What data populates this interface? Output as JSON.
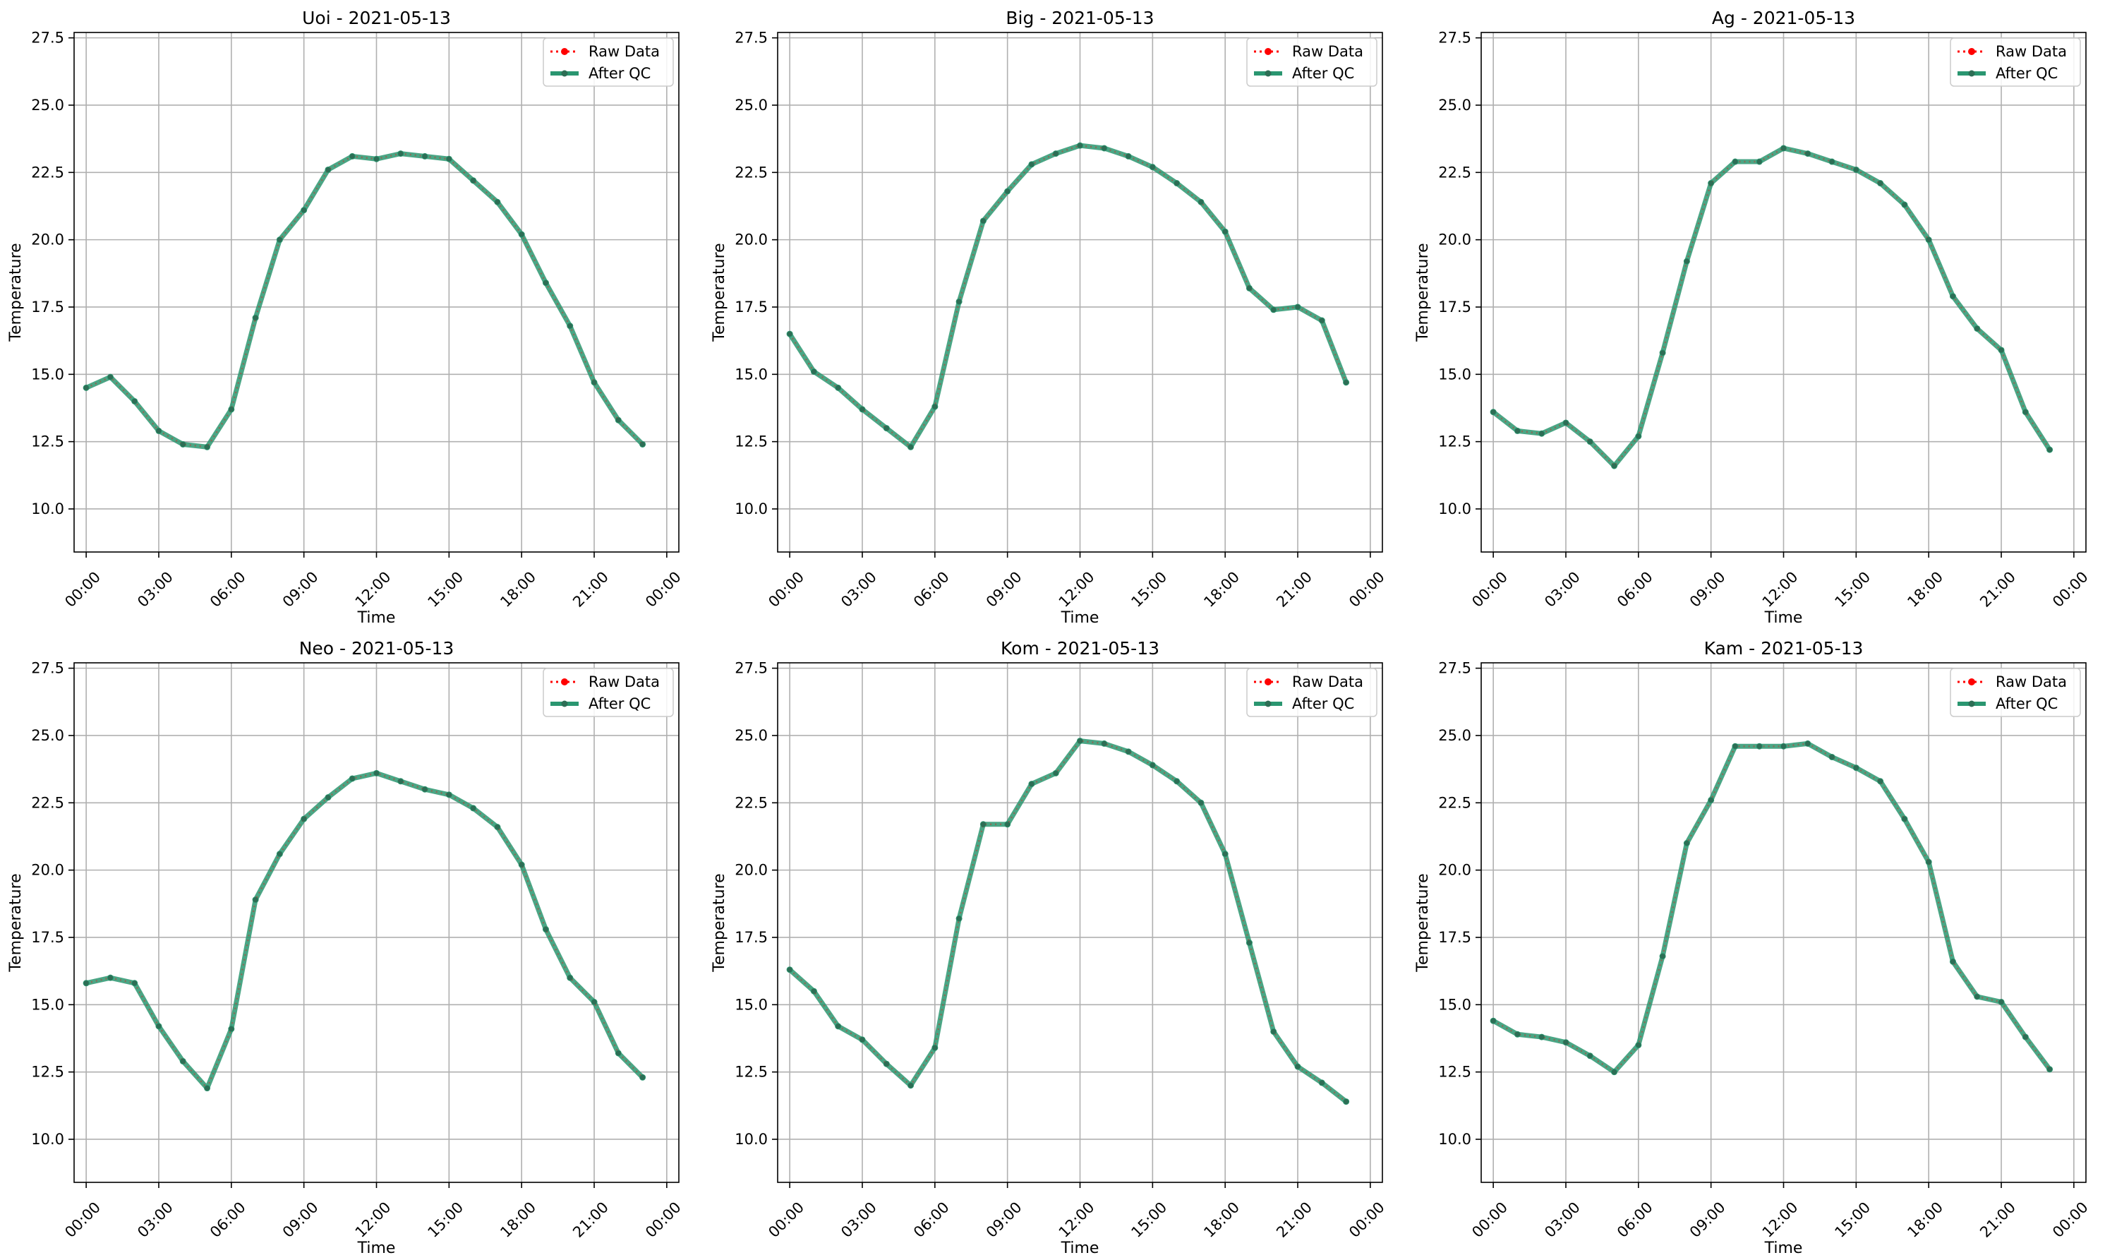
{
  "figure": {
    "xlabel": "Time",
    "ylabel": "Temperature",
    "legend": {
      "raw_label": "Raw Data",
      "qc_label": "After QC",
      "placement": "top-right"
    },
    "colors": {
      "raw": "#ff0000",
      "qc": "#2a9670",
      "grid": "#b0b0b0",
      "axes": "#000000"
    }
  },
  "chart_data": [
    {
      "type": "line",
      "title": "Uoi - 2021-05-13",
      "xlabel": "Time",
      "ylabel": "Temperature",
      "x_hours": [
        0,
        1,
        2,
        3,
        4,
        5,
        6,
        7,
        8,
        9,
        10,
        11,
        12,
        13,
        14,
        15,
        16,
        17,
        18,
        19,
        20,
        21,
        22,
        23
      ],
      "xticks": [
        "00:00",
        "03:00",
        "06:00",
        "09:00",
        "12:00",
        "15:00",
        "18:00",
        "21:00",
        "00:00"
      ],
      "yticks": [
        "10.0",
        "12.5",
        "15.0",
        "17.5",
        "20.0",
        "22.5",
        "25.0",
        "27.5"
      ],
      "ylim": [
        8.4,
        27.7
      ],
      "xlim": [
        -0.5,
        24.5
      ],
      "grid": true,
      "series": [
        {
          "name": "Raw Data",
          "values": [
            14.5,
            14.9,
            14.0,
            12.9,
            12.4,
            12.3,
            13.7,
            17.1,
            20.0,
            21.1,
            22.6,
            23.1,
            23.0,
            23.2,
            23.1,
            23.0,
            22.2,
            21.4,
            20.2,
            18.4,
            16.8,
            14.7,
            13.3,
            12.4
          ]
        },
        {
          "name": "After QC",
          "values": [
            14.5,
            14.9,
            14.0,
            12.9,
            12.4,
            12.3,
            13.7,
            17.1,
            20.0,
            21.1,
            22.6,
            23.1,
            23.0,
            23.2,
            23.1,
            23.0,
            22.2,
            21.4,
            20.2,
            18.4,
            16.8,
            14.7,
            13.3,
            12.4
          ]
        }
      ]
    },
    {
      "type": "line",
      "title": "Big - 2021-05-13",
      "xlabel": "Time",
      "ylabel": "Temperature",
      "x_hours": [
        0,
        1,
        2,
        3,
        4,
        5,
        6,
        7,
        8,
        9,
        10,
        11,
        12,
        13,
        14,
        15,
        16,
        17,
        18,
        19,
        20,
        21,
        22,
        23
      ],
      "xticks": [
        "00:00",
        "03:00",
        "06:00",
        "09:00",
        "12:00",
        "15:00",
        "18:00",
        "21:00",
        "00:00"
      ],
      "yticks": [
        "10.0",
        "12.5",
        "15.0",
        "17.5",
        "20.0",
        "22.5",
        "25.0",
        "27.5"
      ],
      "ylim": [
        8.4,
        27.7
      ],
      "xlim": [
        -0.5,
        24.5
      ],
      "grid": true,
      "series": [
        {
          "name": "Raw Data",
          "values": [
            16.5,
            15.1,
            14.5,
            13.7,
            13.0,
            12.3,
            13.8,
            17.7,
            20.7,
            21.8,
            22.8,
            23.2,
            23.5,
            23.4,
            23.1,
            22.7,
            22.1,
            21.4,
            20.3,
            18.2,
            17.4,
            17.5,
            17.0,
            14.7
          ]
        },
        {
          "name": "After QC",
          "values": [
            16.5,
            15.1,
            14.5,
            13.7,
            13.0,
            12.3,
            13.8,
            17.7,
            20.7,
            21.8,
            22.8,
            23.2,
            23.5,
            23.4,
            23.1,
            22.7,
            22.1,
            21.4,
            20.3,
            18.2,
            17.4,
            17.5,
            17.0,
            14.7
          ]
        }
      ]
    },
    {
      "type": "line",
      "title": "Ag - 2021-05-13",
      "xlabel": "Time",
      "ylabel": "Temperature",
      "x_hours": [
        0,
        1,
        2,
        3,
        4,
        5,
        6,
        7,
        8,
        9,
        10,
        11,
        12,
        13,
        14,
        15,
        16,
        17,
        18,
        19,
        20,
        21,
        22,
        23
      ],
      "xticks": [
        "00:00",
        "03:00",
        "06:00",
        "09:00",
        "12:00",
        "15:00",
        "18:00",
        "21:00",
        "00:00"
      ],
      "yticks": [
        "10.0",
        "12.5",
        "15.0",
        "17.5",
        "20.0",
        "22.5",
        "25.0",
        "27.5"
      ],
      "ylim": [
        8.4,
        27.7
      ],
      "xlim": [
        -0.5,
        24.5
      ],
      "grid": true,
      "series": [
        {
          "name": "Raw Data",
          "values": [
            13.6,
            12.9,
            12.8,
            13.2,
            12.5,
            11.6,
            12.7,
            15.8,
            19.2,
            22.1,
            22.9,
            22.9,
            23.4,
            23.2,
            22.9,
            22.6,
            22.1,
            21.3,
            20.0,
            17.9,
            16.7,
            15.9,
            13.6,
            12.2
          ]
        },
        {
          "name": "After QC",
          "values": [
            13.6,
            12.9,
            12.8,
            13.2,
            12.5,
            11.6,
            12.7,
            15.8,
            19.2,
            22.1,
            22.9,
            22.9,
            23.4,
            23.2,
            22.9,
            22.6,
            22.1,
            21.3,
            20.0,
            17.9,
            16.7,
            15.9,
            13.6,
            12.2
          ]
        }
      ]
    },
    {
      "type": "line",
      "title": "Neo - 2021-05-13",
      "xlabel": "Time",
      "ylabel": "Temperature",
      "x_hours": [
        0,
        1,
        2,
        3,
        4,
        5,
        6,
        7,
        8,
        9,
        10,
        11,
        12,
        13,
        14,
        15,
        16,
        17,
        18,
        19,
        20,
        21,
        22,
        23
      ],
      "xticks": [
        "00:00",
        "03:00",
        "06:00",
        "09:00",
        "12:00",
        "15:00",
        "18:00",
        "21:00",
        "00:00"
      ],
      "yticks": [
        "10.0",
        "12.5",
        "15.0",
        "17.5",
        "20.0",
        "22.5",
        "25.0",
        "27.5"
      ],
      "ylim": [
        8.4,
        27.7
      ],
      "xlim": [
        -0.5,
        24.5
      ],
      "grid": true,
      "series": [
        {
          "name": "Raw Data",
          "values": [
            15.8,
            16.0,
            15.8,
            14.2,
            12.9,
            11.9,
            14.1,
            18.9,
            20.6,
            21.9,
            22.7,
            23.4,
            23.6,
            23.3,
            23.0,
            22.8,
            22.3,
            21.6,
            20.2,
            17.8,
            16.0,
            15.1,
            13.2,
            12.3
          ]
        },
        {
          "name": "After QC",
          "values": [
            15.8,
            16.0,
            15.8,
            14.2,
            12.9,
            11.9,
            14.1,
            18.9,
            20.6,
            21.9,
            22.7,
            23.4,
            23.6,
            23.3,
            23.0,
            22.8,
            22.3,
            21.6,
            20.2,
            17.8,
            16.0,
            15.1,
            13.2,
            12.3
          ]
        }
      ]
    },
    {
      "type": "line",
      "title": "Kom - 2021-05-13",
      "xlabel": "Time",
      "ylabel": "Temperature",
      "x_hours": [
        0,
        1,
        2,
        3,
        4,
        5,
        6,
        7,
        8,
        9,
        10,
        11,
        12,
        13,
        14,
        15,
        16,
        17,
        18,
        19,
        20,
        21,
        22,
        23
      ],
      "xticks": [
        "00:00",
        "03:00",
        "06:00",
        "09:00",
        "12:00",
        "15:00",
        "18:00",
        "21:00",
        "00:00"
      ],
      "yticks": [
        "10.0",
        "12.5",
        "15.0",
        "17.5",
        "20.0",
        "22.5",
        "25.0",
        "27.5"
      ],
      "ylim": [
        8.4,
        27.7
      ],
      "xlim": [
        -0.5,
        24.5
      ],
      "grid": true,
      "series": [
        {
          "name": "Raw Data",
          "values": [
            16.3,
            15.5,
            14.2,
            13.7,
            12.8,
            12.0,
            13.4,
            18.2,
            21.7,
            21.7,
            23.2,
            23.6,
            24.8,
            24.7,
            24.4,
            23.9,
            23.3,
            22.5,
            20.6,
            17.3,
            14.0,
            12.7,
            12.1,
            11.4
          ]
        },
        {
          "name": "After QC",
          "values": [
            16.3,
            15.5,
            14.2,
            13.7,
            12.8,
            12.0,
            13.4,
            18.2,
            21.7,
            21.7,
            23.2,
            23.6,
            24.8,
            24.7,
            24.4,
            23.9,
            23.3,
            22.5,
            20.6,
            17.3,
            14.0,
            12.7,
            12.1,
            11.4
          ]
        }
      ]
    },
    {
      "type": "line",
      "title": "Kam - 2021-05-13",
      "xlabel": "Time",
      "ylabel": "Temperature",
      "x_hours": [
        0,
        1,
        2,
        3,
        4,
        5,
        6,
        7,
        8,
        9,
        10,
        11,
        12,
        13,
        14,
        15,
        16,
        17,
        18,
        19,
        20,
        21,
        22,
        23
      ],
      "xticks": [
        "00:00",
        "03:00",
        "06:00",
        "09:00",
        "12:00",
        "15:00",
        "18:00",
        "21:00",
        "00:00"
      ],
      "yticks": [
        "10.0",
        "12.5",
        "15.0",
        "17.5",
        "20.0",
        "22.5",
        "25.0",
        "27.5"
      ],
      "ylim": [
        8.4,
        27.7
      ],
      "xlim": [
        -0.5,
        24.5
      ],
      "grid": true,
      "series": [
        {
          "name": "Raw Data",
          "values": [
            14.4,
            13.9,
            13.8,
            13.6,
            13.1,
            12.5,
            13.5,
            16.8,
            21.0,
            22.6,
            24.6,
            24.6,
            24.6,
            24.7,
            24.2,
            23.8,
            23.3,
            21.9,
            20.3,
            16.6,
            15.3,
            15.1,
            13.8,
            12.6
          ]
        },
        {
          "name": "After QC",
          "values": [
            14.4,
            13.9,
            13.8,
            13.6,
            13.1,
            12.5,
            13.5,
            16.8,
            21.0,
            22.6,
            24.6,
            24.6,
            24.6,
            24.7,
            24.2,
            23.8,
            23.3,
            21.9,
            20.3,
            16.6,
            15.3,
            15.1,
            13.8,
            12.6
          ]
        }
      ]
    }
  ]
}
